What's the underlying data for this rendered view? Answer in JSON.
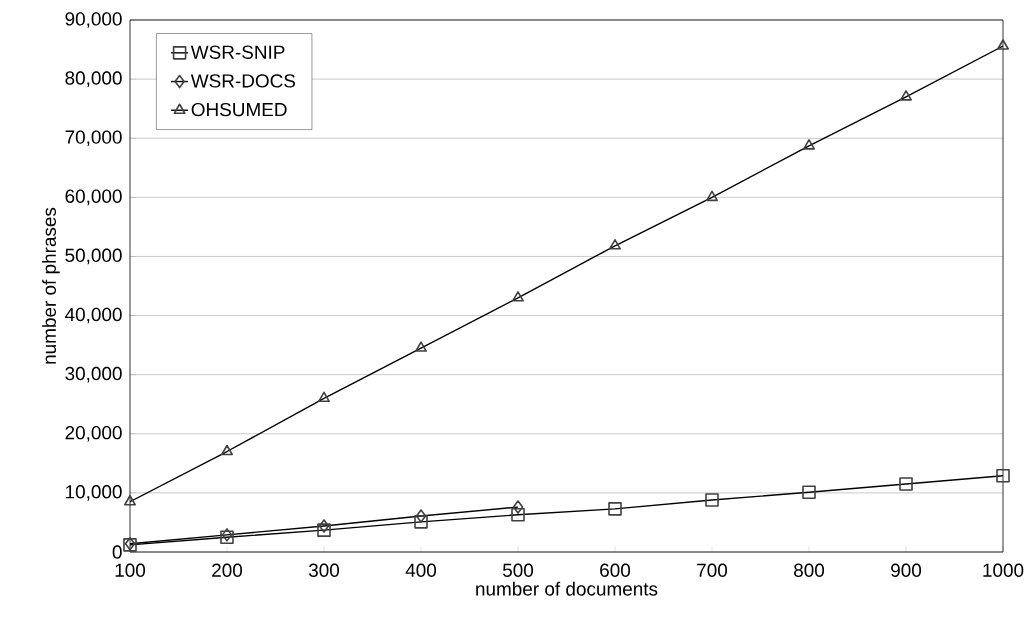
{
  "chart_data": {
    "type": "line",
    "xlabel": "number of documents",
    "ylabel": "number of phrases",
    "x": [
      100,
      200,
      300,
      400,
      500,
      600,
      700,
      800,
      900,
      1000
    ],
    "series": [
      {
        "name": "WSR-SNIP",
        "color": "#000000",
        "marker": "square",
        "values": [
          1200,
          2500,
          3700,
          5100,
          6300,
          7300,
          8800,
          10100,
          11500,
          12900
        ]
      },
      {
        "name": "WSR-DOCS",
        "color": "#000000",
        "marker": "diamond",
        "values": [
          1400,
          2900,
          4400,
          6100,
          7600,
          null,
          null,
          null,
          null,
          null
        ]
      },
      {
        "name": "OHSUMED",
        "color": "#000000",
        "marker": "triangle",
        "values": [
          8500,
          17000,
          26000,
          34500,
          43000,
          51800,
          60000,
          68700,
          77000,
          85600
        ]
      }
    ],
    "xlim": [
      100,
      1000
    ],
    "ylim": [
      0,
      90000
    ],
    "xticks": [
      100,
      200,
      300,
      400,
      500,
      600,
      700,
      800,
      900,
      1000
    ],
    "yticks": [
      0,
      {
        "value": 10000,
        "label": "10,000"
      },
      {
        "value": 20000,
        "label": "20,000"
      },
      {
        "value": 30000,
        "label": "30,000"
      },
      {
        "value": 40000,
        "label": "40,000"
      },
      {
        "value": 50000,
        "label": "50,000"
      },
      {
        "value": 60000,
        "label": "60,000"
      },
      {
        "value": 70000,
        "label": "70,000"
      },
      {
        "value": 80000,
        "label": "80,000"
      },
      {
        "value": 90000,
        "label": "90,000"
      }
    ],
    "grid": "y",
    "legend": "top left",
    "line_style": "solid"
  }
}
